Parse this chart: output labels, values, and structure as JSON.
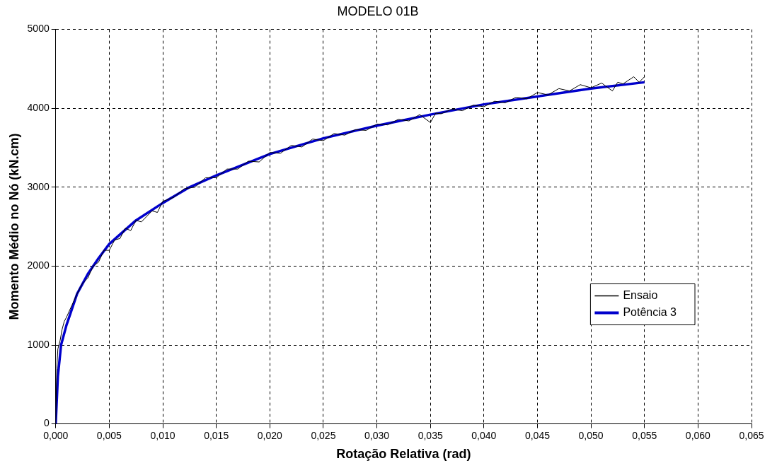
{
  "chart_data": {
    "type": "line",
    "title": "MODELO 01B",
    "xlabel": "Rotação Relativa (rad)",
    "ylabel": "Momento Médio no Nó (kN.cm)",
    "xlim": [
      0,
      0.065
    ],
    "xticks": [
      {
        "value": 0,
        "label": "0,000"
      },
      {
        "value": 0.005,
        "label": "0,005"
      },
      {
        "value": 0.01,
        "label": "0,010"
      },
      {
        "value": 0.015,
        "label": "0,015"
      },
      {
        "value": 0.02,
        "label": "0,020"
      },
      {
        "value": 0.025,
        "label": "0,025"
      },
      {
        "value": 0.03,
        "label": "0,030"
      },
      {
        "value": 0.035,
        "label": "0,035"
      },
      {
        "value": 0.04,
        "label": "0,040"
      },
      {
        "value": 0.045,
        "label": "0,045"
      },
      {
        "value": 0.05,
        "label": "0,050"
      },
      {
        "value": 0.055,
        "label": "0,055"
      },
      {
        "value": 0.06,
        "label": "0,060"
      },
      {
        "value": 0.065,
        "label": "0,065"
      }
    ],
    "ylim": [
      0,
      5000
    ],
    "yticks": [
      0,
      1000,
      2000,
      3000,
      4000,
      5000
    ],
    "grid": true,
    "legend": "right",
    "marker": "none",
    "line_style": "solid",
    "series": [
      {
        "name": "Ensaio",
        "color": "#000000",
        "x": [
          0,
          0.0001,
          0.0002,
          0.0004,
          0.0006,
          0.0008,
          0.001,
          0.0015,
          0.002,
          0.0025,
          0.003,
          0.0035,
          0.004,
          0.0045,
          0.005,
          0.0055,
          0.006,
          0.0065,
          0.007,
          0.0075,
          0.008,
          0.009,
          0.0095,
          0.01,
          0.011,
          0.012,
          0.013,
          0.014,
          0.015,
          0.016,
          0.017,
          0.018,
          0.019,
          0.02,
          0.021,
          0.022,
          0.023,
          0.024,
          0.025,
          0.026,
          0.027,
          0.028,
          0.029,
          0.03,
          0.031,
          0.032,
          0.033,
          0.034,
          0.035,
          0.0355,
          0.036,
          0.037,
          0.038,
          0.039,
          0.04,
          0.041,
          0.042,
          0.043,
          0.044,
          0.045,
          0.046,
          0.047,
          0.048,
          0.049,
          0.05,
          0.051,
          0.052,
          0.0525,
          0.053,
          0.054,
          0.0545,
          0.055
        ],
        "values": [
          0,
          700,
          950,
          1050,
          1200,
          1300,
          1350,
          1500,
          1650,
          1780,
          1850,
          2000,
          2050,
          2200,
          2200,
          2330,
          2350,
          2480,
          2450,
          2580,
          2560,
          2700,
          2680,
          2820,
          2870,
          2980,
          3000,
          3120,
          3120,
          3230,
          3230,
          3330,
          3320,
          3440,
          3430,
          3530,
          3510,
          3610,
          3590,
          3680,
          3660,
          3730,
          3720,
          3800,
          3790,
          3860,
          3840,
          3920,
          3820,
          3940,
          3930,
          3990,
          3970,
          4040,
          4020,
          4090,
          4070,
          4140,
          4120,
          4200,
          4170,
          4250,
          4220,
          4300,
          4260,
          4320,
          4220,
          4330,
          4310,
          4400,
          4330,
          4400
        ]
      },
      {
        "name": "Potência 3",
        "color": "#0000cc",
        "x": [
          0,
          0.0002,
          0.0005,
          0.001,
          0.002,
          0.003,
          0.004,
          0.005,
          0.0075,
          0.01,
          0.0125,
          0.015,
          0.02,
          0.025,
          0.03,
          0.035,
          0.04,
          0.045,
          0.05,
          0.055
        ],
        "values": [
          0,
          600,
          1000,
          1250,
          1650,
          1900,
          2100,
          2280,
          2580,
          2800,
          3000,
          3150,
          3420,
          3620,
          3780,
          3920,
          4050,
          4150,
          4250,
          4330
        ]
      }
    ]
  }
}
